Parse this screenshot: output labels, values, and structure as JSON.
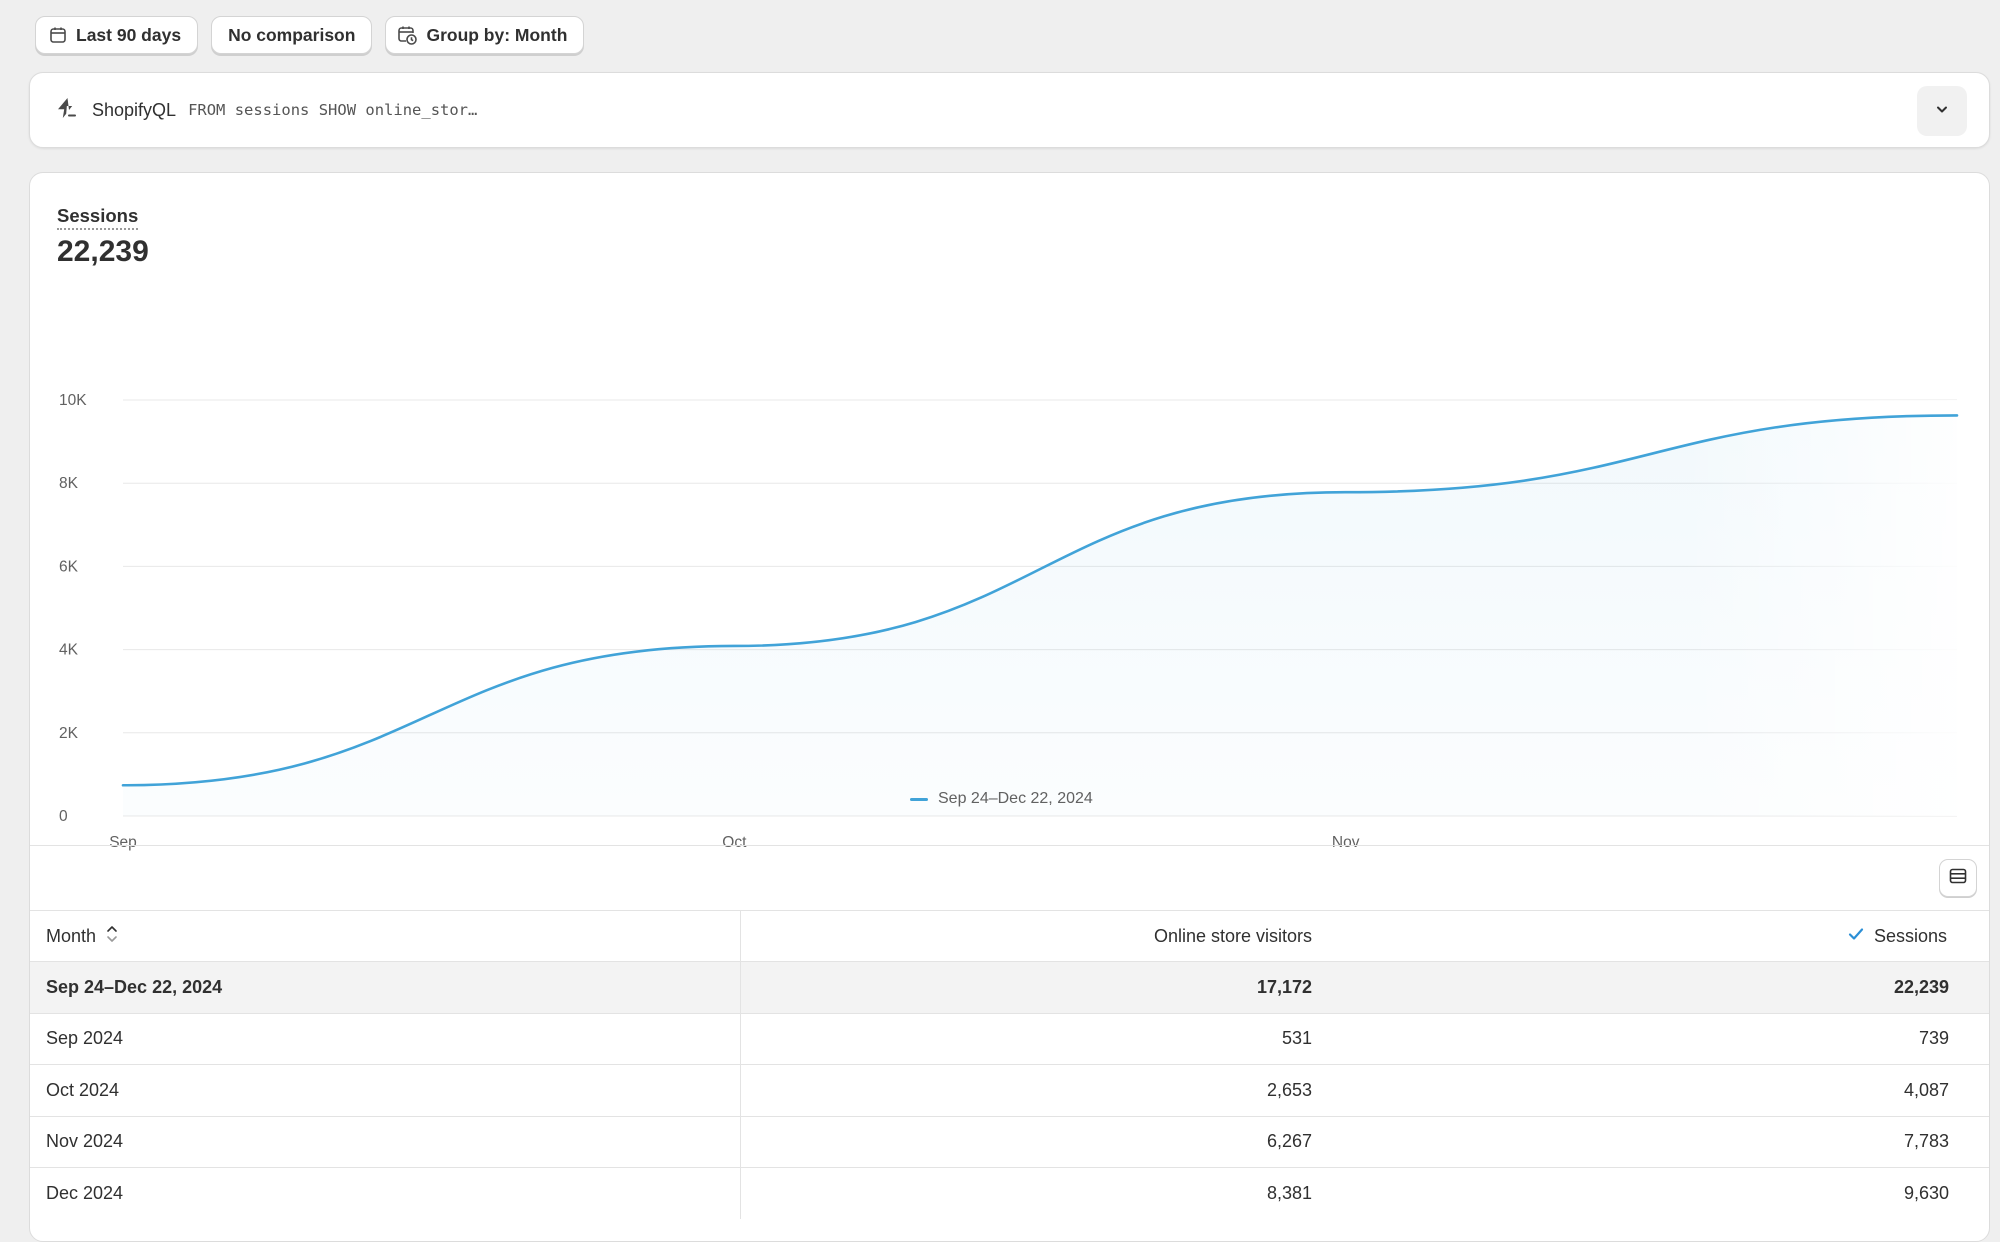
{
  "toolbar": {
    "date_range_label": "Last 90 days",
    "comparison_label": "No comparison",
    "group_by_label": "Group by: Month"
  },
  "query": {
    "label": "ShopifyQL",
    "text": "FROM sessions SHOW online_stor…"
  },
  "metric": {
    "title": "Sessions",
    "value": "22,239"
  },
  "colors": {
    "accent": "#41a3d8",
    "gridline": "#e8e8e8",
    "axis_text": "#616161"
  },
  "chart_data": {
    "type": "area",
    "title": "",
    "xlabel": "",
    "ylabel": "",
    "x": [
      "Sep",
      "Oct",
      "Nov",
      "Dec"
    ],
    "x_tick_labels": [
      "Sep",
      "Oct",
      "Nov"
    ],
    "y_tick_labels": [
      "0",
      "2K",
      "4K",
      "6K",
      "8K",
      "10K"
    ],
    "ylim": [
      0,
      10000
    ],
    "series": [
      {
        "name": "Sep 24–Dec 22, 2024",
        "values": [
          739,
          4087,
          7783,
          9630
        ]
      }
    ],
    "grid": true,
    "legend_position": "bottom-center"
  },
  "legend": {
    "label": "Sep 24–Dec 22, 2024"
  },
  "table": {
    "headers": {
      "month": "Month",
      "visitors": "Online store visitors",
      "sessions": "Sessions"
    },
    "total_row": {
      "month": "Sep 24–Dec 22, 2024",
      "visitors": "17,172",
      "sessions": "22,239"
    },
    "rows": [
      {
        "month": "Sep 2024",
        "visitors": "531",
        "sessions": "739"
      },
      {
        "month": "Oct 2024",
        "visitors": "2,653",
        "sessions": "4,087"
      },
      {
        "month": "Nov 2024",
        "visitors": "6,267",
        "sessions": "7,783"
      },
      {
        "month": "Dec 2024",
        "visitors": "8,381",
        "sessions": "9,630"
      }
    ]
  }
}
